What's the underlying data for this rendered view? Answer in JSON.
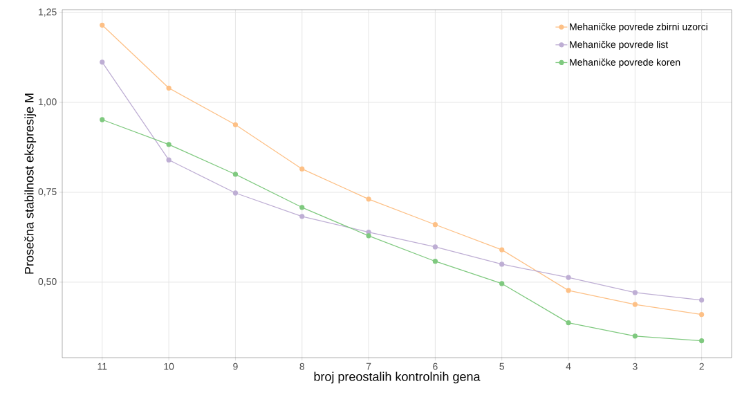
{
  "chart_data": {
    "type": "line",
    "xlabel": "broj preostalih kontrolnih gena",
    "ylabel": "Prosečna stabilnost ekspresije M",
    "categories": [
      "11",
      "10",
      "9",
      "8",
      "7",
      "6",
      "5",
      "4",
      "3",
      "2"
    ],
    "series": [
      {
        "name": "Mehaničke povrede zbirni uzorci",
        "color": "#fdc086",
        "values": [
          1.215,
          1.04,
          0.938,
          0.815,
          0.731,
          0.66,
          0.59,
          0.477,
          0.438,
          0.41
        ]
      },
      {
        "name": "Mehaničke povrede list",
        "color": "#beaed4",
        "values": [
          1.112,
          0.84,
          0.748,
          0.683,
          0.639,
          0.598,
          0.55,
          0.513,
          0.471,
          0.45
        ]
      },
      {
        "name": "Mehaničke povrede koren",
        "color": "#7fc97f",
        "values": [
          0.952,
          0.883,
          0.8,
          0.708,
          0.629,
          0.558,
          0.496,
          0.387,
          0.35,
          0.337
        ]
      }
    ],
    "ylim": [
      0.29,
      1.258
    ],
    "yticks": [
      {
        "value": 0.5,
        "label": "0,50"
      },
      {
        "value": 0.75,
        "label": "0,75"
      },
      {
        "value": 1.0,
        "label": "1,00"
      },
      {
        "value": 1.25,
        "label": "1,25"
      }
    ],
    "grid": true,
    "legend": "top right",
    "marker": "circle",
    "line_style": "solid"
  }
}
